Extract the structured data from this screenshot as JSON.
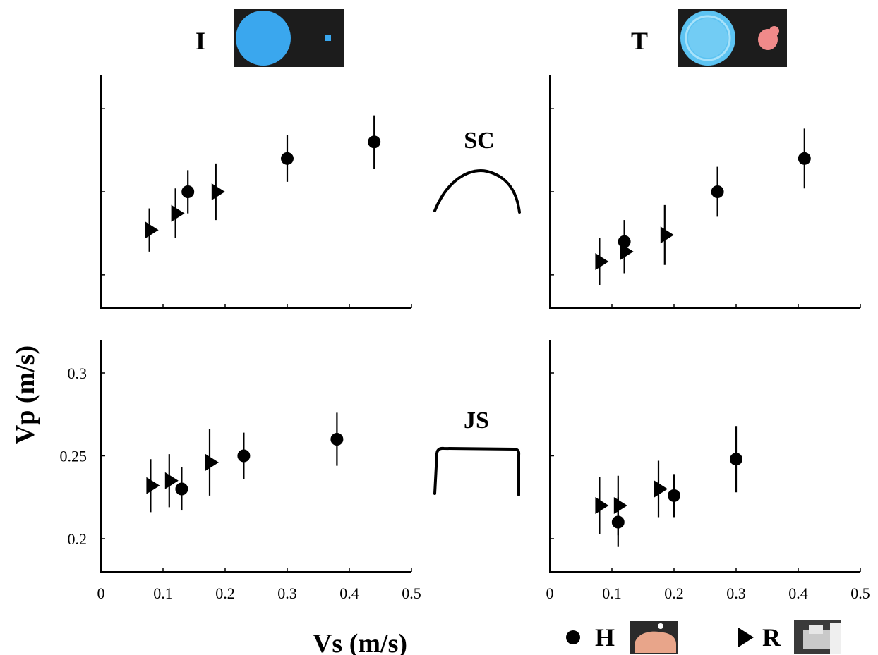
{
  "titles": {
    "left_object": "I",
    "right_object": "T",
    "top_row_shape": "SC",
    "bottom_row_shape": "JS",
    "ylabel": "Vp (m/s)",
    "xlabel": "Vs (m/s)"
  },
  "legend": {
    "human_label": "H",
    "robot_label": "R"
  },
  "colors": {
    "disk_blue": "#3aa7ee",
    "dish_blue": "#5cc3f2",
    "toy_pink": "#f08a8a",
    "photo_bg": "#1c1c1c",
    "marker": "#000000"
  },
  "chart_data": [
    {
      "type": "scatter",
      "panel": "I-SC",
      "xlim": [
        0,
        0.5
      ],
      "ylim": [
        0.18,
        0.32
      ],
      "x_ticks": [
        0,
        0.1,
        0.2,
        0.3,
        0.4,
        0.5
      ],
      "y_ticks": [
        0.2,
        0.25,
        0.3
      ],
      "series": [
        {
          "name": "H",
          "marker": "circle",
          "x": [
            0.14,
            0.3,
            0.44
          ],
          "y": [
            0.25,
            0.27,
            0.28
          ],
          "err": [
            0.013,
            0.014,
            0.016
          ]
        },
        {
          "name": "R",
          "marker": "triangle",
          "x": [
            0.078,
            0.12,
            0.185
          ],
          "y": [
            0.227,
            0.237,
            0.25
          ],
          "err": [
            0.013,
            0.015,
            0.017
          ]
        }
      ]
    },
    {
      "type": "scatter",
      "panel": "T-SC",
      "xlim": [
        0,
        0.5
      ],
      "ylim": [
        0.18,
        0.32
      ],
      "x_ticks": [
        0,
        0.1,
        0.2,
        0.3,
        0.4,
        0.5
      ],
      "y_ticks": [
        0.2,
        0.25,
        0.3
      ],
      "series": [
        {
          "name": "H",
          "marker": "circle",
          "x": [
            0.12,
            0.27,
            0.41
          ],
          "y": [
            0.22,
            0.25,
            0.27
          ],
          "err": [
            0.013,
            0.015,
            0.018
          ]
        },
        {
          "name": "R",
          "marker": "triangle",
          "x": [
            0.08,
            0.12,
            0.185
          ],
          "y": [
            0.208,
            0.214,
            0.224
          ],
          "err": [
            0.014,
            0.013,
            0.018
          ]
        }
      ]
    },
    {
      "type": "scatter",
      "panel": "I-JS",
      "xlim": [
        0,
        0.5
      ],
      "ylim": [
        0.18,
        0.32
      ],
      "xticklabels": [
        "0",
        "0.1",
        "0.2",
        "0.3",
        "0.4",
        "0.5"
      ],
      "yticklabels": [
        "0.2",
        "0.25",
        "0.3"
      ],
      "x_ticks": [
        0,
        0.1,
        0.2,
        0.3,
        0.4,
        0.5
      ],
      "y_ticks": [
        0.2,
        0.25,
        0.3
      ],
      "series": [
        {
          "name": "H",
          "marker": "circle",
          "x": [
            0.13,
            0.23,
            0.38
          ],
          "y": [
            0.23,
            0.25,
            0.26
          ],
          "err": [
            0.013,
            0.014,
            0.016
          ]
        },
        {
          "name": "R",
          "marker": "triangle",
          "x": [
            0.08,
            0.11,
            0.175
          ],
          "y": [
            0.232,
            0.235,
            0.246
          ],
          "err": [
            0.016,
            0.016,
            0.02
          ]
        }
      ]
    },
    {
      "type": "scatter",
      "panel": "T-JS",
      "xlim": [
        0,
        0.5
      ],
      "ylim": [
        0.18,
        0.32
      ],
      "xticklabels": [
        "0",
        "0.1",
        "0.2",
        "0.3",
        "0.4",
        "0.5"
      ],
      "x_ticks": [
        0,
        0.1,
        0.2,
        0.3,
        0.4,
        0.5
      ],
      "y_ticks": [
        0.2,
        0.25,
        0.3
      ],
      "series": [
        {
          "name": "H",
          "marker": "circle",
          "x": [
            0.11,
            0.2,
            0.3
          ],
          "y": [
            0.21,
            0.226,
            0.248
          ],
          "err": [
            0.015,
            0.013,
            0.02
          ]
        },
        {
          "name": "R",
          "marker": "triangle",
          "x": [
            0.08,
            0.11,
            0.175
          ],
          "y": [
            0.22,
            0.22,
            0.23
          ],
          "err": [
            0.017,
            0.018,
            0.017
          ]
        }
      ]
    }
  ]
}
